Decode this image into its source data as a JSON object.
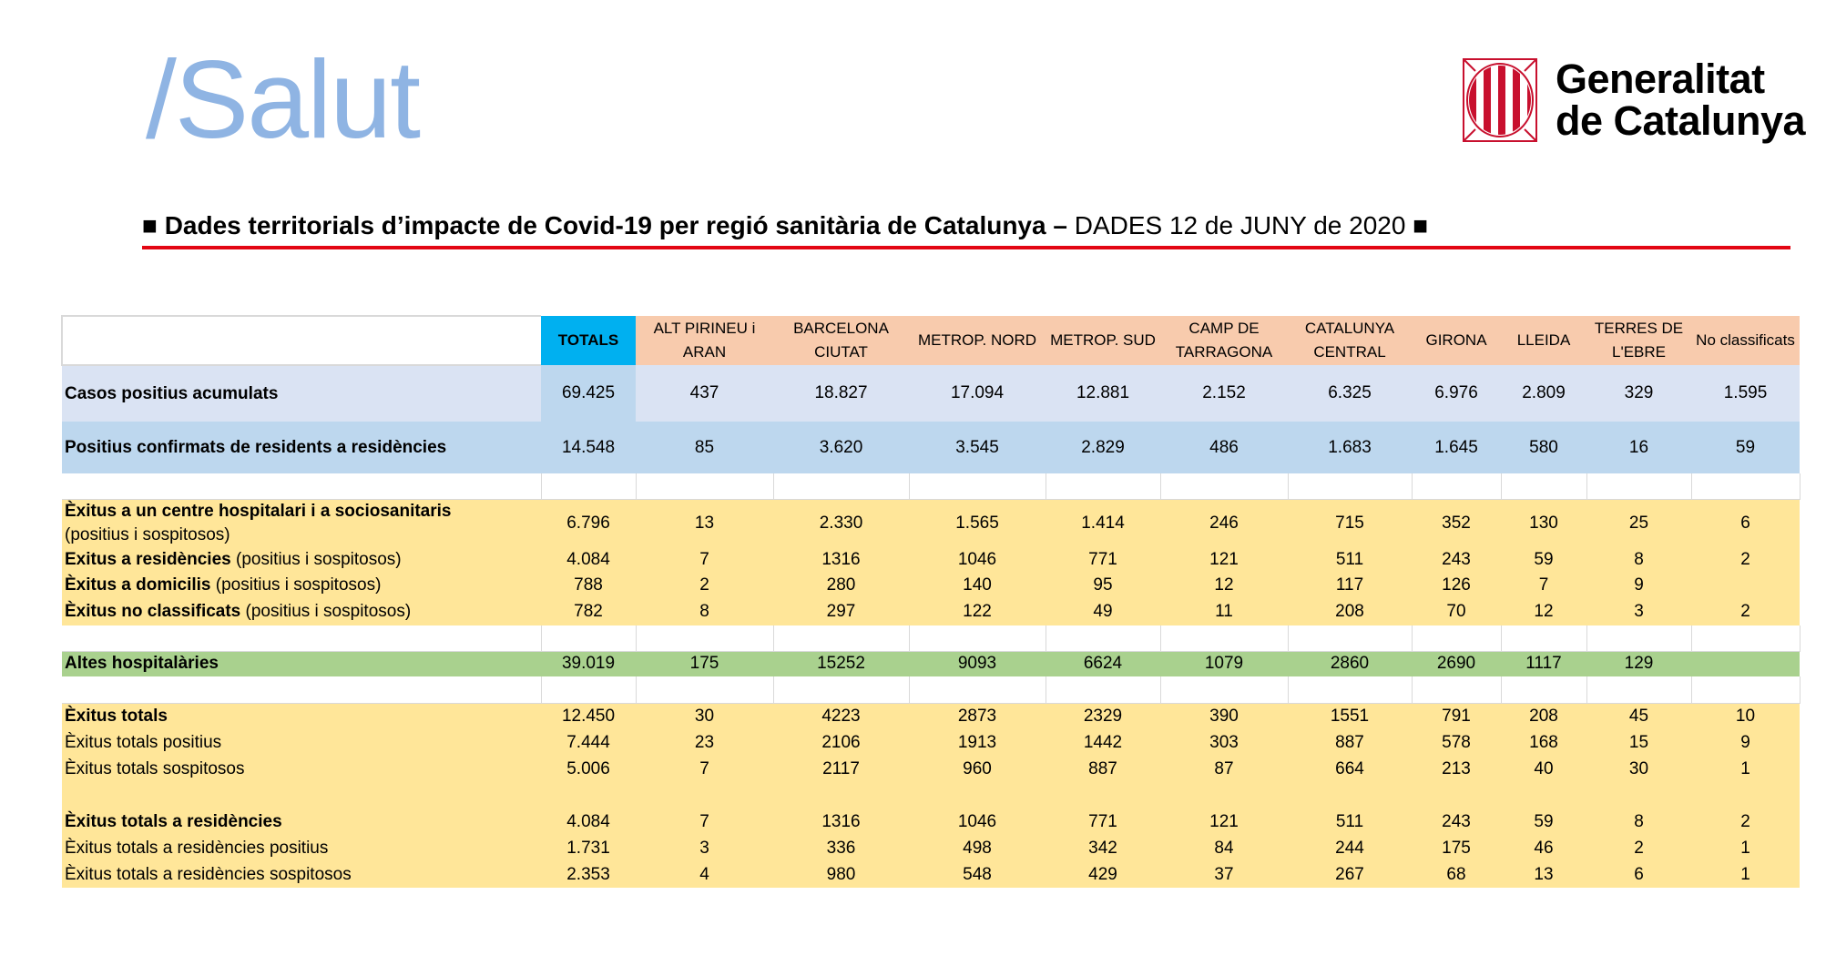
{
  "header": {
    "brand": "/Salut",
    "logo_line1": "Generalitat",
    "logo_line2": "de Catalunya",
    "title_bold": "Dades territorials d’impacte de Covid-19 per regió sanitària de Catalunya –",
    "title_normal": "DADES 12 de JUNY de 2020",
    "title_bullet": "■",
    "accent_color": "#e30613"
  },
  "table": {
    "columns": [
      "TOTALS",
      "ALT PIRINEU i ARAN",
      "BARCELONA CIUTAT",
      "METROP. NORD",
      "METROP. SUD",
      "CAMP DE TARRAGONA",
      "CATALUNYA CENTRAL",
      "GIRONA",
      "LLEIDA",
      "TERRES DE L'EBRE",
      "No classificats"
    ],
    "rows": [
      {
        "type": "casos",
        "label": "Casos positius acumulats",
        "suffix": "",
        "bold_total": true,
        "total": "69.425",
        "values": [
          "437",
          "18.827",
          "17.094",
          "12.881",
          "2.152",
          "6.325",
          "6.976",
          "2.809",
          "329",
          "1.595"
        ]
      },
      {
        "type": "pos",
        "label": "Positius confirmats de residents a residències",
        "suffix": "",
        "bold_total": true,
        "total": "14.548",
        "values": [
          "85",
          "3.620",
          "3.545",
          "2.829",
          "486",
          "1.683",
          "1.645",
          "580",
          "16",
          "59"
        ]
      },
      {
        "type": "blank"
      },
      {
        "type": "yellow",
        "label": "Èxitus a un centre hospitalari i a sociosanitaris",
        "suffix": "(positius i sospitosos)",
        "suffix_newline": true,
        "bold_total": true,
        "total": "6.796",
        "values": [
          "13",
          "2.330",
          "1.565",
          "1.414",
          "246",
          "715",
          "352",
          "130",
          "25",
          "6"
        ]
      },
      {
        "type": "yellow",
        "label": "Exitus a residències",
        "suffix": "(positius i sospitosos)",
        "bold_total": true,
        "total": "4.084",
        "values": [
          "7",
          "1316",
          "1046",
          "771",
          "121",
          "511",
          "243",
          "59",
          "8",
          "2"
        ]
      },
      {
        "type": "yellow",
        "label": "Èxitus a domicilis",
        "suffix": "(positius i sospitosos)",
        "bold_total": true,
        "total": "788",
        "values": [
          "2",
          "280",
          "140",
          "95",
          "12",
          "117",
          "126",
          "7",
          "9",
          ""
        ]
      },
      {
        "type": "yellow",
        "label": "Èxitus no classificats",
        "suffix": "(positius i sospitosos)",
        "bold_total": true,
        "total": "782",
        "values": [
          "8",
          "297",
          "122",
          "49",
          "11",
          "208",
          "70",
          "12",
          "3",
          "2"
        ]
      },
      {
        "type": "blank"
      },
      {
        "type": "green",
        "label": "Altes hospitalàries",
        "suffix": "",
        "bold_total": true,
        "total": "39.019",
        "values": [
          "175",
          "15252",
          "9093",
          "6624",
          "1079",
          "2860",
          "2690",
          "1117",
          "129",
          ""
        ]
      },
      {
        "type": "blank"
      },
      {
        "type": "yellow",
        "label": "Èxitus totals",
        "suffix": "",
        "bold_total": true,
        "total": "12.450",
        "values": [
          "30",
          "4223",
          "2873",
          "2329",
          "390",
          "1551",
          "791",
          "208",
          "45",
          "10"
        ]
      },
      {
        "type": "yellow",
        "label": "",
        "suffix": "Èxitus totals positius",
        "bold_total": false,
        "total": "7.444",
        "values": [
          "23",
          "2106",
          "1913",
          "1442",
          "303",
          "887",
          "578",
          "168",
          "15",
          "9"
        ]
      },
      {
        "type": "yellow",
        "label": "",
        "suffix": "Èxitus totals sospitosos",
        "bold_total": false,
        "total": "5.006",
        "values": [
          "7",
          "2117",
          "960",
          "887",
          "87",
          "664",
          "213",
          "40",
          "30",
          "1"
        ]
      },
      {
        "type": "yblank"
      },
      {
        "type": "yellow",
        "label": "Èxitus totals a residències",
        "suffix": "",
        "bold_total": true,
        "total": "4.084",
        "values": [
          "7",
          "1316",
          "1046",
          "771",
          "121",
          "511",
          "243",
          "59",
          "8",
          "2"
        ]
      },
      {
        "type": "yellow",
        "label": "",
        "suffix": "Èxitus totals a residències positius",
        "bold_total": false,
        "total": "1.731",
        "values": [
          "3",
          "336",
          "498",
          "342",
          "84",
          "244",
          "175",
          "46",
          "2",
          "1"
        ]
      },
      {
        "type": "yellow",
        "label": "",
        "suffix": "Èxitus totals a residències sospitosos",
        "bold_total": false,
        "total": "2.353",
        "values": [
          "4",
          "980",
          "548",
          "429",
          "37",
          "267",
          "68",
          "13",
          "6",
          "1"
        ]
      }
    ]
  }
}
